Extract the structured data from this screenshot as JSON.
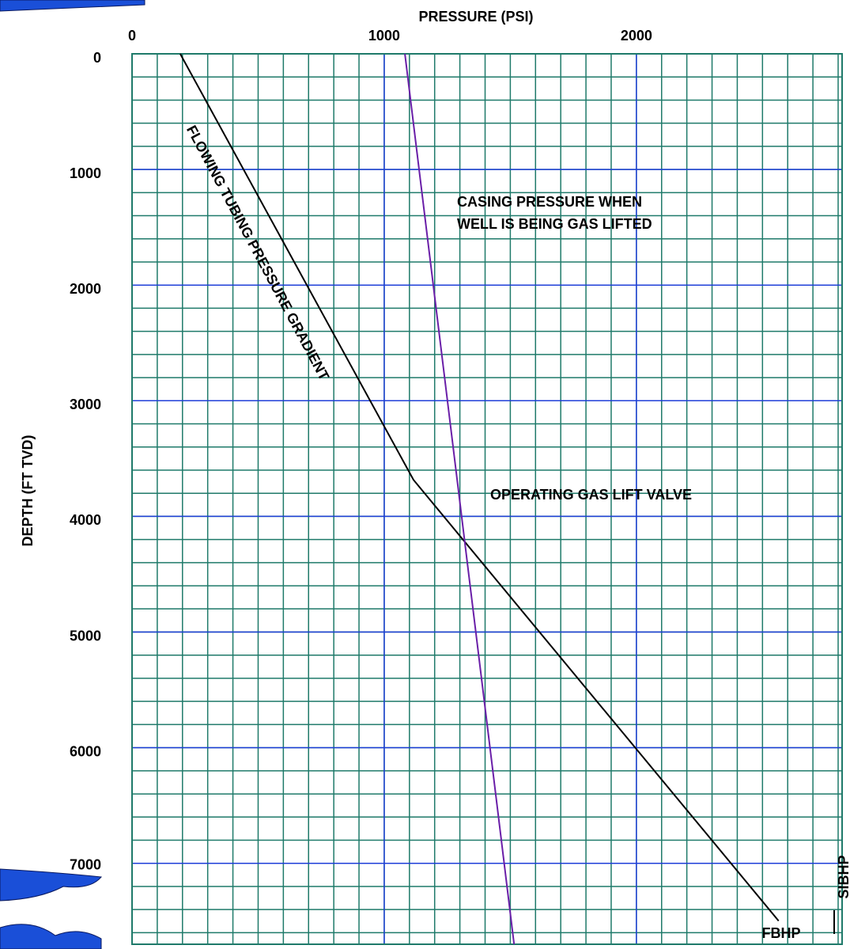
{
  "chart_data": {
    "type": "line",
    "xlabel": "PRESSURE (PSI)",
    "ylabel": "DEPTH (FT TVD)",
    "xlim": [
      0,
      2800
    ],
    "xticks": [
      0,
      1000,
      2000
    ],
    "ylim": [
      0,
      7700
    ],
    "yticks": [
      0,
      1000,
      2000,
      3000,
      4000,
      5000,
      6000,
      7000
    ],
    "y_inverted": true,
    "x_axis_position": "top",
    "grid": true,
    "series": [
      {
        "color": "#000000",
        "x": [
          191,
          1116,
          2564
        ],
        "values": [
          0,
          3684,
          7498
        ]
      },
      {
        "color": "#6a1fa8",
        "x": [
          1082,
          1515
        ],
        "values": [
          0,
          7700
        ]
      }
    ],
    "annotations": [
      "FLOWING TUBING PRESSURE GRADIENT",
      "CASING PRESSURE WHEN",
      "WELL IS BEING GAS LIFTED",
      "OPERATING GAS LIFT VALVE",
      "FBHP",
      "SIBHP"
    ]
  }
}
